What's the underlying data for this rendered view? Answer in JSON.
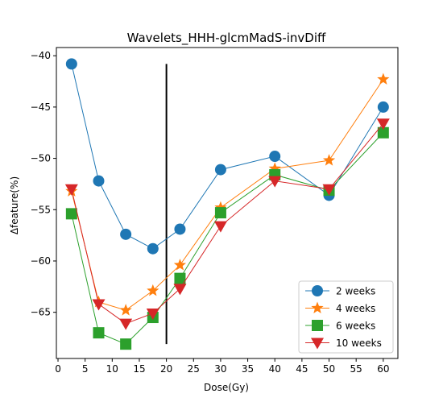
{
  "chart_data": {
    "type": "line",
    "title": "Wavelets_HHH-glcmMadS-invDiff",
    "xlabel": "Dose(Gy)",
    "ylabel": "Δfeature(%)",
    "xlim": [
      -0.3,
      62.7
    ],
    "ylim": [
      -69.5,
      -39.2
    ],
    "xticks": [
      0,
      5,
      10,
      15,
      20,
      25,
      30,
      35,
      40,
      45,
      50,
      55,
      60
    ],
    "yticks": [
      -65,
      -60,
      -55,
      -50,
      -45,
      -40
    ],
    "grid": false,
    "legend_position": "lower-right",
    "vertical_line": {
      "x": 20,
      "y_range": [
        -68.1,
        -40.8
      ],
      "color": "#000000"
    },
    "series": [
      {
        "name": "2 weeks",
        "color": "#1f77b4",
        "marker": "circle",
        "x": [
          2.5,
          7.5,
          12.5,
          17.5,
          22.5,
          30,
          40,
          50,
          60
        ],
        "y": [
          -40.8,
          -52.2,
          -57.4,
          -58.8,
          -56.9,
          -51.1,
          -49.8,
          -53.6,
          -45.0
        ]
      },
      {
        "name": "4 weeks",
        "color": "#ff7f0e",
        "marker": "star",
        "x": [
          2.5,
          7.5,
          12.5,
          17.5,
          22.5,
          30,
          40,
          50,
          60
        ],
        "y": [
          -53.2,
          -64.0,
          -64.8,
          -62.9,
          -60.4,
          -54.8,
          -51.0,
          -50.2,
          -42.3
        ]
      },
      {
        "name": "6 weeks",
        "color": "#2ca02c",
        "marker": "square",
        "x": [
          2.5,
          7.5,
          12.5,
          17.5,
          22.5,
          30,
          40,
          50,
          60
        ],
        "y": [
          -55.4,
          -67.0,
          -68.1,
          -65.5,
          -61.7,
          -55.3,
          -51.6,
          -53.1,
          -47.5
        ]
      },
      {
        "name": "10 weeks",
        "color": "#d62728",
        "marker": "triangle-down",
        "x": [
          2.5,
          7.5,
          12.5,
          17.5,
          22.5,
          30,
          40,
          50,
          60
        ],
        "y": [
          -53.0,
          -64.2,
          -66.1,
          -65.1,
          -62.7,
          -56.6,
          -52.2,
          -53.0,
          -46.6
        ]
      }
    ]
  }
}
